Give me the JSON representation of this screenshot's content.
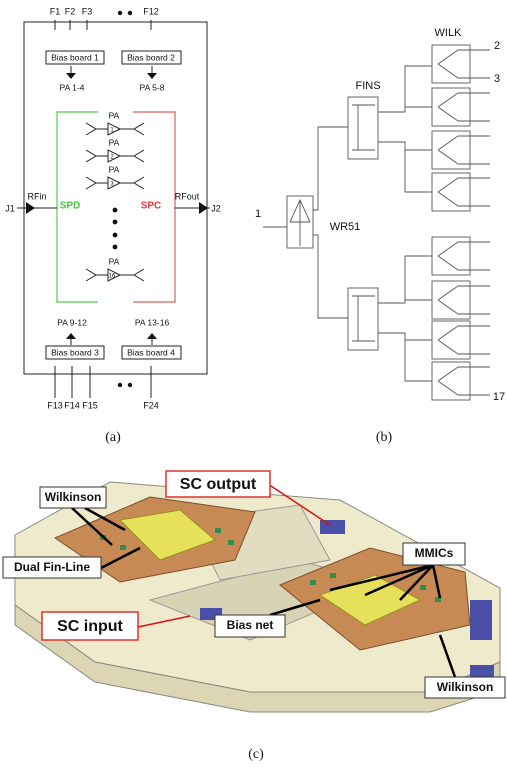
{
  "panel_a": {
    "top_pins": [
      "F1",
      "F2",
      "F3",
      "F12"
    ],
    "top_bias_boards": [
      {
        "label": "Bias board 1",
        "outputs": "PA 1-4"
      },
      {
        "label": "Bias board 2",
        "outputs": "PA 5-8"
      }
    ],
    "amplifiers": [
      {
        "label": "PA",
        "index": "1"
      },
      {
        "label": "PA",
        "index": "2"
      },
      {
        "label": "PA",
        "index": "3"
      },
      {
        "label": "PA",
        "index": "16"
      }
    ],
    "input_label": "RFin",
    "output_label": "RFout",
    "input_port": "J1",
    "output_port": "J2",
    "divider": "SPD",
    "combiner": "SPC",
    "bottom_bias_boards": [
      {
        "label": "Bias board 3",
        "outputs": "PA 9-12"
      },
      {
        "label": "Bias board 4",
        "outputs": "PA 13-16"
      }
    ],
    "bottom_pins": [
      "F13",
      "F14",
      "F15",
      "F24"
    ],
    "caption": "(a)"
  },
  "panel_b": {
    "wilkinson": "WILK",
    "fin_line": "FINS",
    "waveguide": "WR51",
    "input_port": "1",
    "output_ports": [
      "2",
      "3",
      "17"
    ],
    "caption": "(b)"
  },
  "panel_c": {
    "callouts": [
      "SC output",
      "Wilkinson",
      "Dual Fin-Line",
      "MMICs",
      "Bias net",
      "SC input",
      "Wilkinson"
    ],
    "caption": "(c)"
  }
}
